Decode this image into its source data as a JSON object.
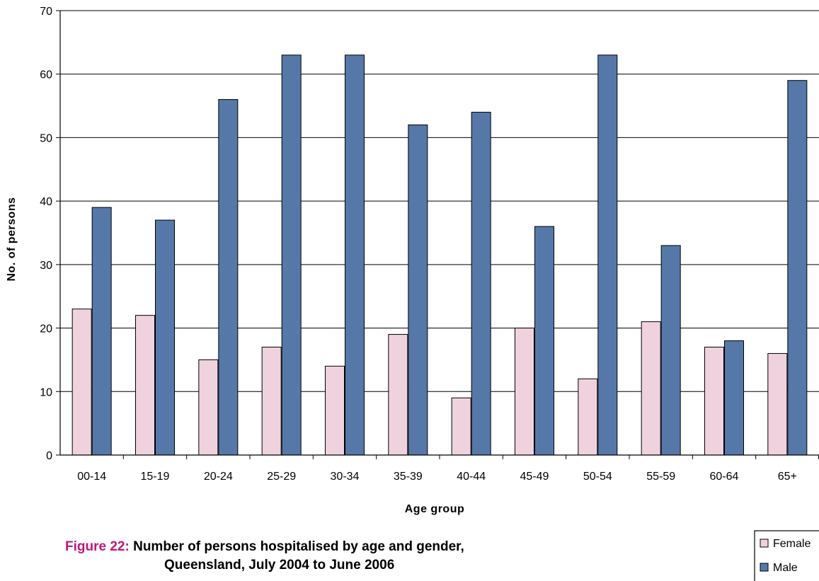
{
  "caption": {
    "label": "Figure 22:",
    "line1": "Number of persons hospitalised by age and gender,",
    "line2": "Queensland, July 2004 to June 2006"
  },
  "colors": {
    "female": "#f0d2df",
    "male": "#5578a8",
    "caption_label": "#c0187a",
    "gridline": "#000000"
  },
  "chart_data": {
    "type": "bar",
    "title": "",
    "xlabel": "Age group",
    "ylabel": "No. of persons",
    "ylim": [
      0,
      70
    ],
    "yticks": [
      0,
      10,
      20,
      30,
      40,
      50,
      60,
      70
    ],
    "grid": true,
    "legend_position": "bottom-right",
    "categories": [
      "00-14",
      "15-19",
      "20-24",
      "25-29",
      "30-34",
      "35-39",
      "40-44",
      "45-49",
      "50-54",
      "55-59",
      "60-64",
      "65+"
    ],
    "series": [
      {
        "name": "Female",
        "color": "#f0d2df",
        "values": [
          23,
          22,
          15,
          17,
          14,
          19,
          9,
          20,
          12,
          21,
          17,
          16
        ]
      },
      {
        "name": "Male",
        "color": "#5578a8",
        "values": [
          39,
          37,
          56,
          63,
          63,
          52,
          54,
          36,
          63,
          33,
          18,
          59
        ]
      }
    ]
  }
}
